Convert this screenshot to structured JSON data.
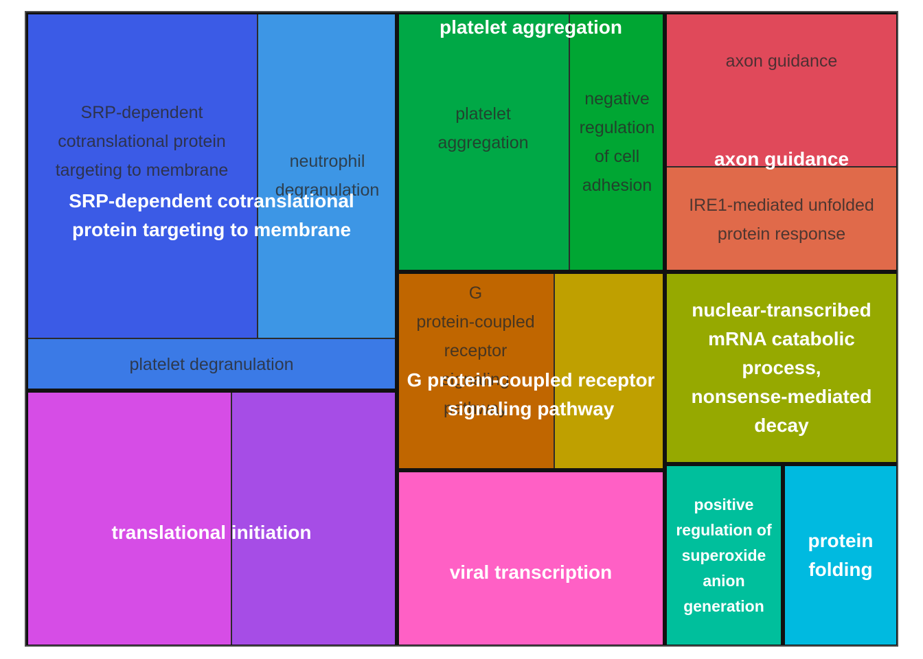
{
  "chart_data": {
    "type": "treemap",
    "groups": [
      {
        "label": "SRP-dependent cotranslational protein targeting to membrane",
        "items": [
          {
            "label": "SRP-dependent cotranslational protein targeting to membrane",
            "value": 26.1,
            "color": "#3b5be6"
          },
          {
            "label": "neutrophil degranulation",
            "value": 13.8,
            "color": "#3d96e5"
          },
          {
            "label": "platelet degranulation",
            "value": 7.8,
            "color": "#3b7ae6"
          }
        ]
      },
      {
        "label": "translational initiation",
        "items": [
          {
            "label": "translational initiation",
            "value": 18.4,
            "color": "#d64de6"
          },
          {
            "label": "translational initiation (2)",
            "value": 15.2,
            "color": "#a64de6"
          }
        ]
      },
      {
        "label": "platelet aggregation",
        "items": [
          {
            "label": "platelet aggregation",
            "value": 14.7,
            "color": "#00a846"
          },
          {
            "label": "negative regulation of cell adhesion",
            "value": 8.2,
            "color": "#00a633"
          }
        ]
      },
      {
        "label": "G protein-coupled receptor signaling pathway",
        "items": [
          {
            "label": "G protein-coupled receptor signaling pathway",
            "value": 11.2,
            "color": "#c06600"
          },
          {
            "label": "G protein-coupled receptor signaling pathway (2)",
            "value": 8.0,
            "color": "#bfa000"
          }
        ]
      },
      {
        "label": "viral transcription",
        "items": [
          {
            "label": "viral transcription",
            "value": 16.4,
            "color": "#ff60c5"
          }
        ]
      },
      {
        "label": "axon guidance",
        "items": [
          {
            "label": "axon guidance",
            "value": 8.1,
            "color": "#e0495a"
          },
          {
            "label": "IRE1-mediated unfolded protein response",
            "value": 7.4,
            "color": "#e06a4a"
          }
        ]
      },
      {
        "label": "nuclear-transcribed mRNA catabolic process, nonsense-mediated decay",
        "items": [
          {
            "label": "nuclear-transcribed mRNA catabolic process, nonsense-mediated decay",
            "value": 13.7,
            "color": "#96a900"
          }
        ]
      },
      {
        "label": "positive regulation of superoxide anion generation",
        "items": [
          {
            "label": "positive regulation of superoxide anion generation",
            "value": 7.6,
            "color": "#00bf9c"
          }
        ]
      },
      {
        "label": "protein folding",
        "items": [
          {
            "label": "protein folding",
            "value": 7.3,
            "color": "#00bae0"
          }
        ]
      }
    ]
  }
}
